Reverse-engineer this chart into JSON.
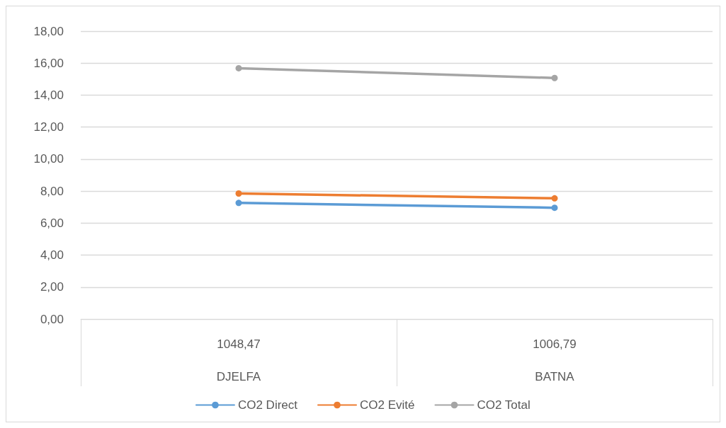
{
  "chart_data": {
    "type": "line",
    "categories": [
      "1048,47\nDJELFA",
      "1006,79\nBATNA"
    ],
    "series": [
      {
        "name": "CO2 Direct",
        "color": "#5b9bd5",
        "values": [
          7.26,
          6.96
        ]
      },
      {
        "name": "CO2 Evité",
        "color": "#ed7d31",
        "values": [
          7.85,
          7.55
        ]
      },
      {
        "name": "CO2 Total",
        "color": "#a5a5a5",
        "values": [
          15.68,
          15.07
        ]
      }
    ],
    "ylim": [
      0,
      18
    ],
    "yticks": [
      {
        "value": 0,
        "label": "0,00"
      },
      {
        "value": 2,
        "label": "2,00"
      },
      {
        "value": 4,
        "label": "4,00"
      },
      {
        "value": 6,
        "label": "6,00"
      },
      {
        "value": 8,
        "label": "8,00"
      },
      {
        "value": 10,
        "label": "10,00"
      },
      {
        "value": 12,
        "label": "12,00"
      },
      {
        "value": 14,
        "label": "14,00"
      },
      {
        "value": 16,
        "label": "16,00"
      },
      {
        "value": 18,
        "label": "18,00"
      }
    ],
    "grid": "y",
    "legend": "bottom",
    "marker": "circle",
    "line_style": "solid"
  }
}
